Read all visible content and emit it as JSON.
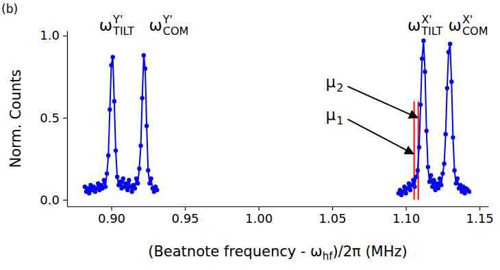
{
  "chart_data": {
    "type": "scatter",
    "panel_label": "(b)",
    "x_label": [
      "(Beatnote frequency - ω",
      "hf",
      ")/2π (MHz)"
    ],
    "y_label": "Norm. Counts",
    "xlim": [
      0.87,
      1.156
    ],
    "ylim": [
      -0.04,
      1.03
    ],
    "xticks": [
      {
        "value": 0.9,
        "label": "0.90"
      },
      0.95,
      {
        "value": 1.0,
        "label": "1.00"
      },
      1.05,
      {
        "value": 1.1,
        "label": "1.10"
      },
      1.15
    ],
    "yticks": [
      {
        "value": 0,
        "label": "0.0"
      },
      0.5,
      {
        "value": 1,
        "label": "1.0"
      }
    ],
    "x": [
      0.882,
      0.883,
      0.884,
      0.885,
      0.886,
      0.887,
      0.888,
      0.889,
      0.89,
      0.891,
      0.892,
      0.893,
      0.894,
      0.895,
      0.896,
      0.897,
      0.898,
      0.899,
      0.9,
      0.901,
      0.902,
      0.903,
      0.904,
      0.905,
      0.906,
      0.907,
      0.908,
      0.909,
      0.91,
      0.911,
      0.912,
      0.913,
      0.914,
      0.915,
      0.916,
      0.917,
      0.918,
      0.919,
      0.92,
      0.921,
      0.922,
      0.923,
      0.924,
      0.925,
      0.926,
      0.927,
      0.928,
      0.929,
      0.93,
      0.931,
      1.0,
      1.095,
      1.096,
      1.097,
      1.098,
      1.099,
      1.1,
      1.101,
      1.102,
      1.103,
      1.104,
      1.105,
      1.106,
      1.107,
      1.108,
      1.109,
      1.11,
      1.111,
      1.112,
      1.113,
      1.114,
      1.115,
      1.116,
      1.117,
      1.118,
      1.119,
      1.12,
      1.121,
      1.122,
      1.123,
      1.124,
      1.125,
      1.126,
      1.127,
      1.128,
      1.129,
      1.13,
      1.131,
      1.132,
      1.133,
      1.134,
      1.135,
      1.136,
      1.137,
      1.138,
      1.139,
      1.14,
      1.141,
      1.142,
      1.143
    ],
    "series": [
      {
        "color": "#0000ff",
        "marker": "circle",
        "line_style": "solid",
        "values": [
          0.08,
          0.05,
          0.07,
          0.04,
          0.09,
          0.06,
          0.08,
          0.05,
          0.07,
          0.1,
          0.06,
          0.09,
          0.07,
          0.12,
          0.08,
          0.16,
          0.27,
          0.55,
          0.82,
          0.87,
          0.6,
          0.3,
          0.14,
          0.09,
          0.11,
          0.07,
          0.13,
          0.08,
          0.1,
          0.06,
          0.12,
          0.08,
          0.05,
          0.09,
          0.07,
          0.13,
          0.1,
          0.19,
          0.33,
          0.62,
          0.88,
          0.8,
          0.45,
          0.18,
          0.1,
          0.13,
          0.07,
          0.05,
          0.08,
          0.06,
          null,
          0.04,
          0.06,
          0.03,
          0.05,
          0.08,
          0.04,
          0.07,
          0.1,
          0.06,
          0.09,
          0.12,
          0.08,
          0.14,
          0.18,
          0.32,
          0.58,
          0.86,
          0.97,
          0.78,
          0.42,
          0.2,
          0.11,
          0.15,
          0.08,
          0.12,
          0.06,
          0.1,
          0.07,
          0.13,
          0.09,
          0.16,
          0.22,
          0.4,
          0.68,
          0.9,
          0.95,
          0.72,
          0.38,
          0.18,
          0.1,
          0.13,
          0.07,
          0.09,
          0.05,
          0.08,
          0.04,
          0.07,
          0.06,
          0.05
        ]
      }
    ],
    "peak_labels": [
      {
        "text": "ω",
        "sup": "Y'",
        "sub": "TILT",
        "x": 0.9037,
        "y": 1.029
      },
      {
        "text": "ω",
        "sup": "Y'",
        "sub": "COM",
        "x": 0.939,
        "y": 1.029
      },
      {
        "text": "ω",
        "sup": "X'",
        "sub": "TILT",
        "x": 1.113,
        "y": 1.029
      },
      {
        "text": "ω",
        "sup": "X'",
        "sub": "COM",
        "x": 1.1423,
        "y": 1.029
      }
    ],
    "markers": [
      {
        "text": "μ",
        "sub": "1",
        "x": 1.1056,
        "ymin": 0,
        "ymax": 0.6,
        "color": "red",
        "label_x": 1.0516,
        "label_y": 0.483,
        "arrow_x": 1.1052,
        "arrow_y": 0.28
      },
      {
        "text": "μ",
        "sub": "2",
        "x": 1.1084,
        "ymin": 0,
        "ymax": 0.6,
        "color": "red",
        "label_x": 1.0516,
        "label_y": 0.683,
        "arrow_x": 1.108,
        "arrow_y": 0.5
      }
    ]
  }
}
